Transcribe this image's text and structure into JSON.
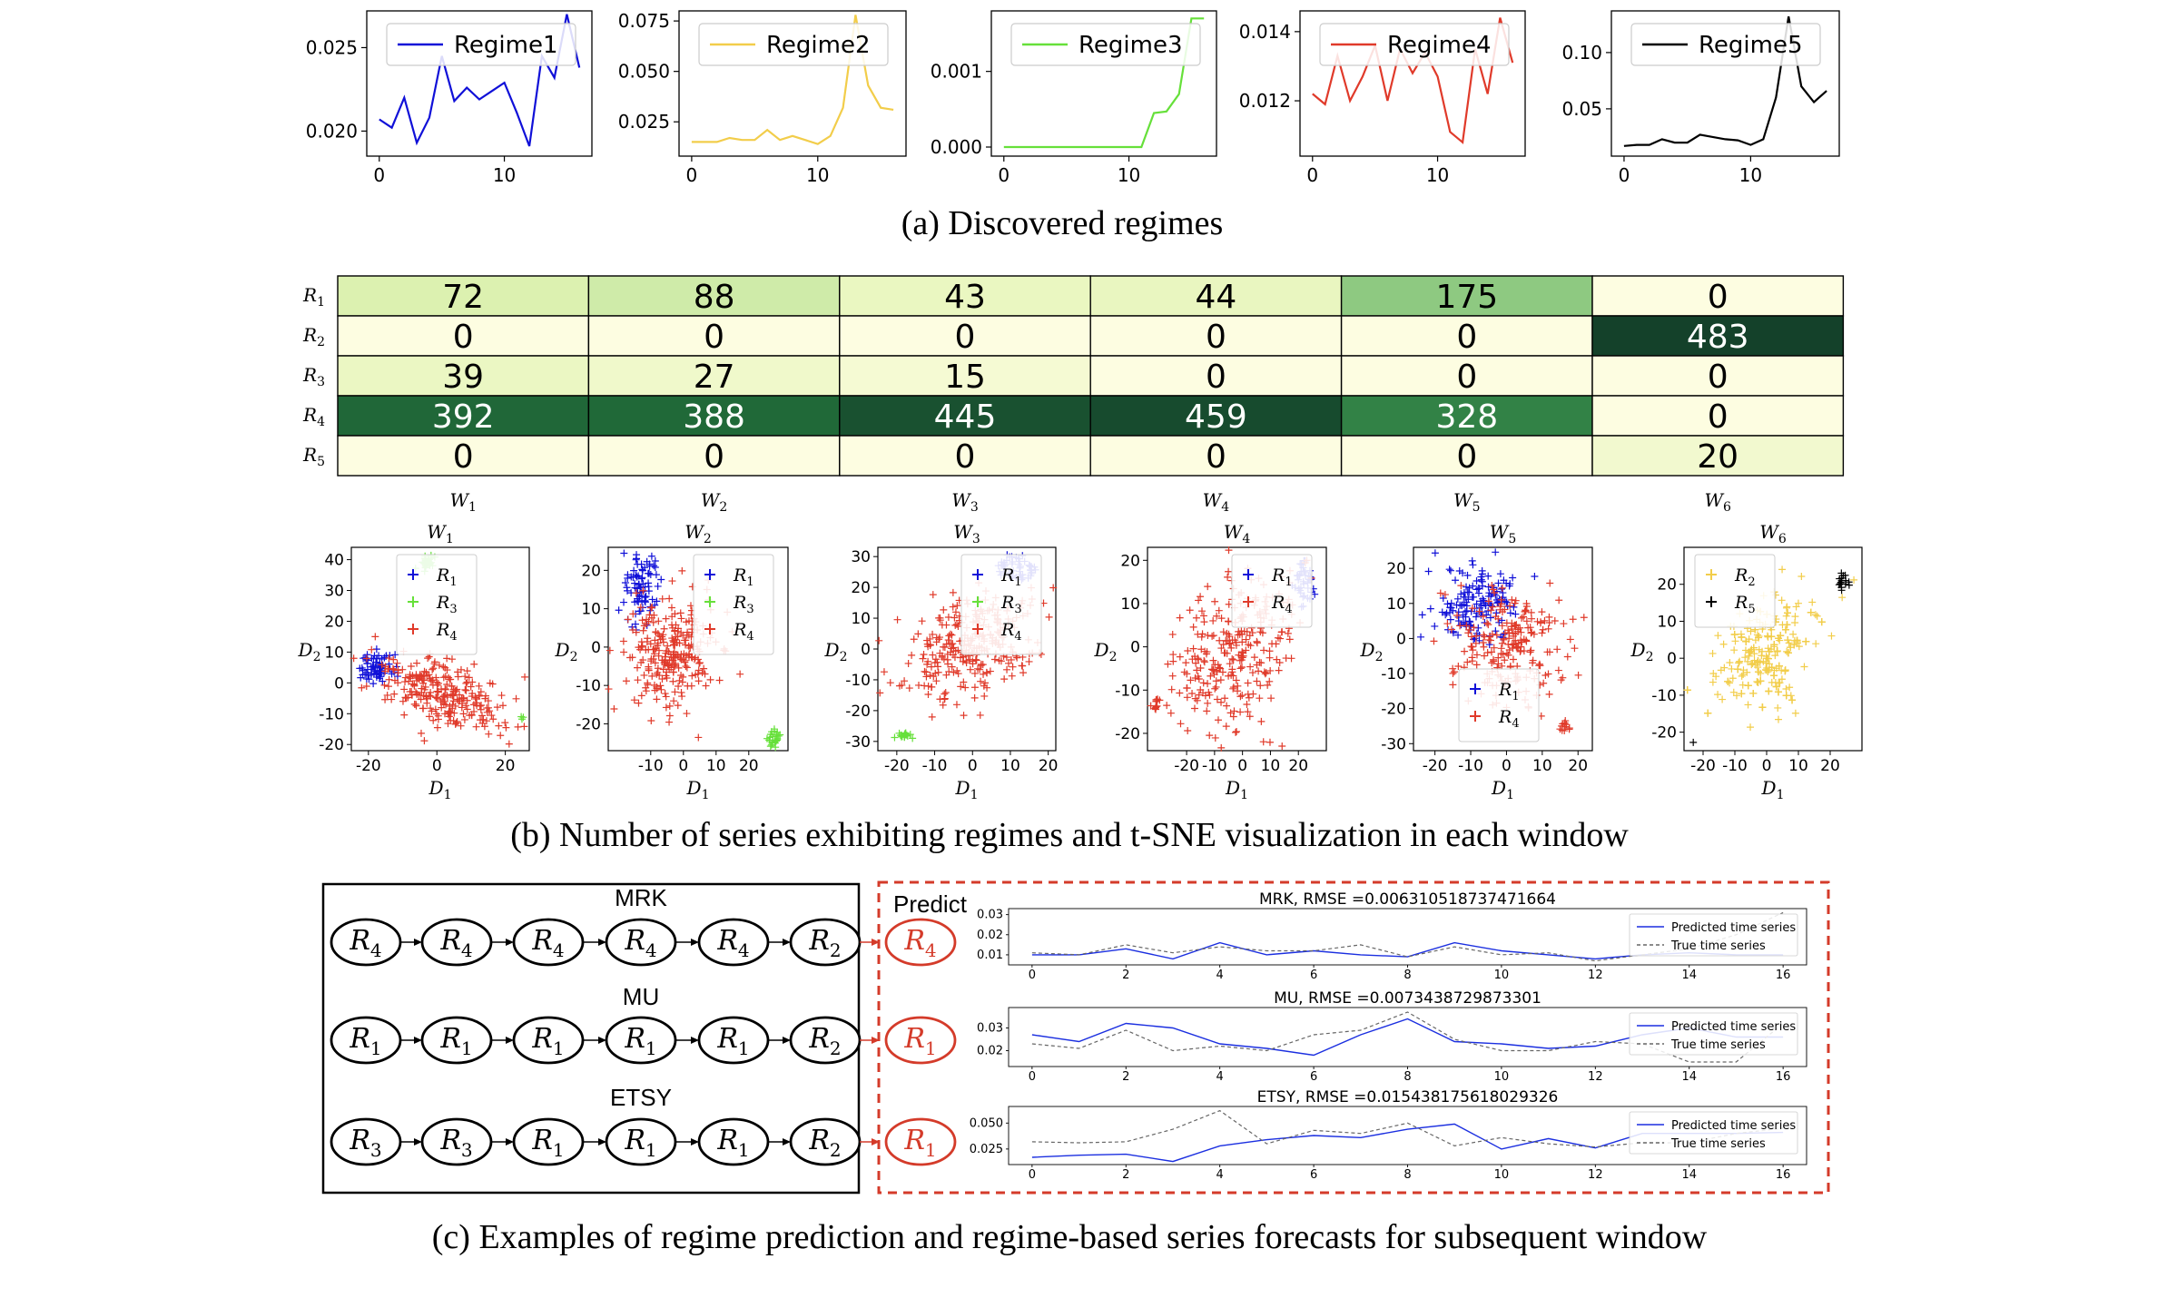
{
  "captions": {
    "a": "(a) Discovered regimes",
    "b": "(b) Number of series exhibiting regimes and t-SNE visualization in each window",
    "c": "(c) Examples of regime prediction and regime-based series forecasts for subsequent window"
  },
  "colors": {
    "regime1": "#1010d8",
    "regime2": "#f2cd4a",
    "regime3": "#66e03a",
    "regime4": "#e03a2a",
    "regime5": "#000000",
    "heat_low": "#fdfde1",
    "heat_high": "#14412a",
    "predict": "#d43b2a"
  },
  "chart_data": [
    {
      "type": "line",
      "panel": "regime1",
      "series": [
        {
          "name": "Regime1",
          "color": "#1010d8",
          "x": [
            0,
            1,
            2,
            3,
            4,
            5,
            6,
            7,
            8,
            9,
            10,
            11,
            12,
            13,
            14,
            15,
            16
          ],
          "y": [
            0.0207,
            0.0202,
            0.022,
            0.0193,
            0.0208,
            0.0245,
            0.0218,
            0.0226,
            0.0219,
            0.0224,
            0.0229,
            0.0211,
            0.0191,
            0.0245,
            0.0232,
            0.027,
            0.0238
          ]
        }
      ],
      "xlim": [
        -1,
        17
      ],
      "ylim": [
        0.0185,
        0.0272
      ],
      "xticks": [
        0,
        10
      ],
      "yticks": [
        0.02,
        0.025
      ],
      "ytick_labels": [
        "0.020",
        "0.025"
      ]
    },
    {
      "type": "line",
      "panel": "regime2",
      "series": [
        {
          "name": "Regime2",
          "color": "#f2cd4a",
          "x": [
            0,
            1,
            2,
            3,
            4,
            5,
            6,
            7,
            8,
            9,
            10,
            11,
            12,
            13,
            14,
            15,
            16
          ],
          "y": [
            0.015,
            0.015,
            0.015,
            0.017,
            0.016,
            0.016,
            0.021,
            0.016,
            0.018,
            0.016,
            0.014,
            0.018,
            0.032,
            0.078,
            0.043,
            0.032,
            0.031
          ]
        }
      ],
      "xlim": [
        -1,
        17
      ],
      "ylim": [
        0.008,
        0.08
      ],
      "xticks": [
        0,
        10
      ],
      "yticks": [
        0.025,
        0.05,
        0.075
      ],
      "ytick_labels": [
        "0.025",
        "0.050",
        "0.075"
      ]
    },
    {
      "type": "line",
      "panel": "regime3",
      "series": [
        {
          "name": "Regime3",
          "color": "#66e03a",
          "x": [
            0,
            1,
            2,
            3,
            4,
            5,
            6,
            7,
            8,
            9,
            10,
            11,
            12,
            13,
            14,
            15,
            16
          ],
          "y": [
            0,
            0,
            0,
            0,
            0,
            0,
            0,
            0,
            0,
            0,
            0,
            0,
            0.00045,
            0.00047,
            0.0007,
            0.0017,
            0.0017
          ]
        }
      ],
      "xlim": [
        -1,
        17
      ],
      "ylim": [
        -0.00012,
        0.0018
      ],
      "xticks": [
        0,
        10
      ],
      "yticks": [
        0.0,
        0.001
      ],
      "ytick_labels": [
        "0.000",
        "0.001"
      ]
    },
    {
      "type": "line",
      "panel": "regime4",
      "series": [
        {
          "name": "Regime4",
          "color": "#e03a2a",
          "x": [
            0,
            1,
            2,
            3,
            4,
            5,
            6,
            7,
            8,
            9,
            10,
            11,
            12,
            13,
            14,
            15,
            16
          ],
          "y": [
            0.0122,
            0.0119,
            0.0133,
            0.012,
            0.0127,
            0.0136,
            0.012,
            0.0135,
            0.0128,
            0.0134,
            0.0127,
            0.0111,
            0.0108,
            0.0135,
            0.0122,
            0.0144,
            0.0131
          ]
        }
      ],
      "xlim": [
        -1,
        17
      ],
      "ylim": [
        0.0104,
        0.0146
      ],
      "xticks": [
        0,
        10
      ],
      "yticks": [
        0.012,
        0.014
      ],
      "ytick_labels": [
        "0.012",
        "0.014"
      ]
    },
    {
      "type": "line",
      "panel": "regime5",
      "series": [
        {
          "name": "Regime5",
          "color": "#000000",
          "x": [
            0,
            1,
            2,
            3,
            4,
            5,
            6,
            7,
            8,
            9,
            10,
            11,
            12,
            13,
            14,
            15,
            16
          ],
          "y": [
            0.017,
            0.018,
            0.018,
            0.023,
            0.02,
            0.02,
            0.027,
            0.025,
            0.023,
            0.022,
            0.018,
            0.023,
            0.06,
            0.132,
            0.07,
            0.056,
            0.066
          ]
        }
      ],
      "xlim": [
        -1,
        17
      ],
      "ylim": [
        0.008,
        0.137
      ],
      "xticks": [
        0,
        10
      ],
      "yticks": [
        0.05,
        0.1
      ],
      "ytick_labels": [
        "0.05",
        "0.10"
      ]
    },
    {
      "type": "heatmap",
      "panel": "counts",
      "rows": [
        "R1",
        "R2",
        "R3",
        "R4",
        "R5"
      ],
      "cols": [
        "W1",
        "W2",
        "W3",
        "W4",
        "W5",
        "W6"
      ],
      "values": [
        [
          72,
          88,
          43,
          44,
          175,
          0
        ],
        [
          0,
          0,
          0,
          0,
          0,
          483
        ],
        [
          39,
          27,
          15,
          0,
          0,
          0
        ],
        [
          392,
          388,
          445,
          459,
          328,
          0
        ],
        [
          0,
          0,
          0,
          0,
          0,
          20
        ]
      ],
      "max": 483
    },
    {
      "type": "scatter",
      "panel": "tsne",
      "xlabel": "D1",
      "ylabel": "D2",
      "windows": [
        {
          "title": "W1",
          "xlim": [
            -25,
            27
          ],
          "ylim": [
            -22,
            44
          ],
          "xticks": [
            -20,
            0,
            20
          ],
          "yticks": [
            -20,
            -10,
            0,
            10,
            20,
            30,
            40
          ],
          "legend": [
            "R1",
            "R3",
            "R4"
          ],
          "clusters": [
            {
              "regime": "R1",
              "cx": -18,
              "cy": 5,
              "sx": 3,
              "sy": 2.5,
              "n": 70
            },
            {
              "regime": "R4",
              "cx": 2,
              "cy": -4,
              "sx": 11,
              "sy": 5,
              "n": 260,
              "tilt": -0.38
            },
            {
              "regime": "R3",
              "cx": -3,
              "cy": 39,
              "sx": 1,
              "sy": 1,
              "n": 30
            },
            {
              "regime": "R3",
              "cx": 25,
              "cy": -11,
              "sx": 0.5,
              "sy": 0.5,
              "n": 3
            }
          ]
        },
        {
          "title": "W2",
          "xlim": [
            -23,
            32
          ],
          "ylim": [
            -27,
            26
          ],
          "xticks": [
            -10,
            0,
            10,
            20
          ],
          "yticks": [
            -20,
            -10,
            0,
            10,
            20
          ],
          "legend": [
            "R1",
            "R3",
            "R4"
          ],
          "clusters": [
            {
              "regime": "R1",
              "cx": -13,
              "cy": 16,
              "sx": 3,
              "sy": 4,
              "n": 80
            },
            {
              "regime": "R4",
              "cx": -3,
              "cy": -1,
              "sx": 7,
              "sy": 7,
              "n": 260,
              "tilt": -0.9
            },
            {
              "regime": "R3",
              "cx": 28,
              "cy": -24,
              "sx": 1,
              "sy": 1,
              "n": 25
            }
          ]
        },
        {
          "title": "W3",
          "xlim": [
            -25,
            22
          ],
          "ylim": [
            -33,
            33
          ],
          "xticks": [
            -20,
            -10,
            0,
            10,
            20
          ],
          "yticks": [
            -30,
            -20,
            -10,
            0,
            10,
            20,
            30
          ],
          "legend": [
            "R1",
            "R3",
            "R4"
          ],
          "clusters": [
            {
              "regime": "R1",
              "cx": 12,
              "cy": 26,
              "sx": 2.5,
              "sy": 2,
              "n": 50
            },
            {
              "regime": "R4",
              "cx": -1,
              "cy": 0,
              "sx": 10,
              "sy": 7,
              "n": 280,
              "tilt": 0.75
            },
            {
              "regime": "R3",
              "cx": -18,
              "cy": -28,
              "sx": 0.8,
              "sy": 0.8,
              "n": 20
            }
          ]
        },
        {
          "title": "W4",
          "xlim": [
            -34,
            30
          ],
          "ylim": [
            -24,
            23
          ],
          "xticks": [
            -20,
            -10,
            0,
            10,
            20
          ],
          "yticks": [
            -20,
            -10,
            0,
            10,
            20
          ],
          "legend": [
            "R1",
            "R4"
          ],
          "clusters": [
            {
              "regime": "R1",
              "cx": 22,
              "cy": 15,
              "sx": 2,
              "sy": 3,
              "n": 40
            },
            {
              "regime": "R4",
              "cx": -3,
              "cy": -2,
              "sx": 12,
              "sy": 8,
              "n": 280,
              "tilt": 0.55
            },
            {
              "regime": "R4",
              "cx": -31,
              "cy": -13,
              "sx": 0.6,
              "sy": 0.6,
              "n": 12
            }
          ]
        },
        {
          "title": "W5",
          "xlim": [
            -26,
            24
          ],
          "ylim": [
            -32,
            26
          ],
          "xticks": [
            -20,
            -10,
            0,
            10,
            20
          ],
          "yticks": [
            -30,
            -20,
            -10,
            0,
            10,
            20
          ],
          "legend": [
            "R1",
            "R4"
          ],
          "clusters": [
            {
              "regime": "R1",
              "cx": -8,
              "cy": 10,
              "sx": 6,
              "sy": 6,
              "n": 150
            },
            {
              "regime": "R4",
              "cx": 2,
              "cy": -2,
              "sx": 8,
              "sy": 8,
              "n": 220,
              "tilt": -0.7
            },
            {
              "regime": "R4",
              "cx": 16,
              "cy": -25,
              "sx": 0.8,
              "sy": 0.8,
              "n": 12
            }
          ]
        },
        {
          "title": "W6",
          "xlim": [
            -26,
            30
          ],
          "ylim": [
            -25,
            30
          ],
          "xticks": [
            -20,
            -10,
            0,
            10,
            20
          ],
          "yticks": [
            -20,
            -10,
            0,
            10,
            20
          ],
          "legend": [
            "R2",
            "R5"
          ],
          "clusters": [
            {
              "regime": "R2",
              "cx": 0,
              "cy": 2,
              "sx": 11,
              "sy": 6,
              "n": 380,
              "tilt": 0.75
            },
            {
              "regime": "R5",
              "cx": 24,
              "cy": 21,
              "sx": 1.2,
              "sy": 1.2,
              "n": 15
            },
            {
              "regime": "R5",
              "cx": -23,
              "cy": -22,
              "sx": 0.3,
              "sy": 0.3,
              "n": 1
            }
          ]
        }
      ]
    },
    {
      "type": "line",
      "panel": "forecast-mrk",
      "title": "MRK, RMSE =0.006310518737471664",
      "series": [
        {
          "name": "Predicted time series",
          "color": "#1b2fe0",
          "y": [
            0.01,
            0.01,
            0.013,
            0.008,
            0.016,
            0.01,
            0.012,
            0.01,
            0.009,
            0.016,
            0.012,
            0.01,
            0.008,
            0.01,
            0.011,
            0.01,
            0.01
          ]
        },
        {
          "name": "True time series",
          "color": "#666666",
          "dashed": true,
          "y": [
            0.011,
            0.01,
            0.015,
            0.011,
            0.014,
            0.012,
            0.012,
            0.015,
            0.009,
            0.014,
            0.01,
            0.011,
            0.007,
            0.01,
            0.013,
            0.02,
            0.031
          ]
        }
      ],
      "xlim": [
        -0.5,
        16.5
      ],
      "ylim": [
        0.005,
        0.033
      ],
      "xticks": [
        0,
        2,
        4,
        6,
        8,
        10,
        12,
        14,
        16
      ],
      "yticks": [
        0.01,
        0.02,
        0.03
      ],
      "ytick_labels": [
        "0.01",
        "0.02",
        "0.03"
      ]
    },
    {
      "type": "line",
      "panel": "forecast-mu",
      "title": "MU, RMSE =0.0073438729873301",
      "series": [
        {
          "name": "Predicted time series",
          "color": "#1b2fe0",
          "y": [
            0.027,
            0.024,
            0.032,
            0.03,
            0.023,
            0.021,
            0.018,
            0.027,
            0.034,
            0.024,
            0.023,
            0.021,
            0.022,
            0.027,
            0.03,
            0.026,
            0.026
          ]
        },
        {
          "name": "True time series",
          "color": "#666666",
          "dashed": true,
          "y": [
            0.023,
            0.021,
            0.029,
            0.02,
            0.022,
            0.02,
            0.027,
            0.029,
            0.037,
            0.025,
            0.02,
            0.02,
            0.024,
            0.023,
            0.015,
            0.015,
            0.032
          ]
        }
      ],
      "xlim": [
        -0.5,
        16.5
      ],
      "ylim": [
        0.013,
        0.039
      ],
      "xticks": [
        0,
        2,
        4,
        6,
        8,
        10,
        12,
        14,
        16
      ],
      "yticks": [
        0.02,
        0.03
      ],
      "ytick_labels": [
        "0.02",
        "0.03"
      ]
    },
    {
      "type": "line",
      "panel": "forecast-etsy",
      "title": "ETSY, RMSE =0.015438175618029326",
      "series": [
        {
          "name": "Predicted time series",
          "color": "#1b2fe0",
          "y": [
            0.017,
            0.019,
            0.02,
            0.013,
            0.028,
            0.034,
            0.038,
            0.036,
            0.044,
            0.049,
            0.025,
            0.035,
            0.026,
            0.04,
            0.04,
            0.04,
            0.041
          ]
        },
        {
          "name": "True time series",
          "color": "#666666",
          "dashed": true,
          "y": [
            0.032,
            0.031,
            0.032,
            0.044,
            0.062,
            0.03,
            0.043,
            0.04,
            0.05,
            0.028,
            0.036,
            0.03,
            0.027,
            0.031,
            0.031,
            0.04,
            0.045
          ]
        }
      ],
      "xlim": [
        -0.5,
        16.5
      ],
      "ylim": [
        0.01,
        0.066
      ],
      "xticks": [
        0,
        2,
        4,
        6,
        8,
        10,
        12,
        14,
        16
      ],
      "yticks": [
        0.025,
        0.05
      ],
      "ytick_labels": [
        "0.025",
        "0.050"
      ]
    }
  ],
  "sequences": {
    "predict_label": "Predict",
    "rows": [
      {
        "ticker": "MRK",
        "nodes": [
          "4",
          "4",
          "4",
          "4",
          "4",
          "2"
        ],
        "predicted": "4"
      },
      {
        "ticker": "MU",
        "nodes": [
          "1",
          "1",
          "1",
          "1",
          "1",
          "2"
        ],
        "predicted": "1"
      },
      {
        "ticker": "ETSY",
        "nodes": [
          "3",
          "3",
          "1",
          "1",
          "1",
          "2"
        ],
        "predicted": "1"
      }
    ]
  }
}
